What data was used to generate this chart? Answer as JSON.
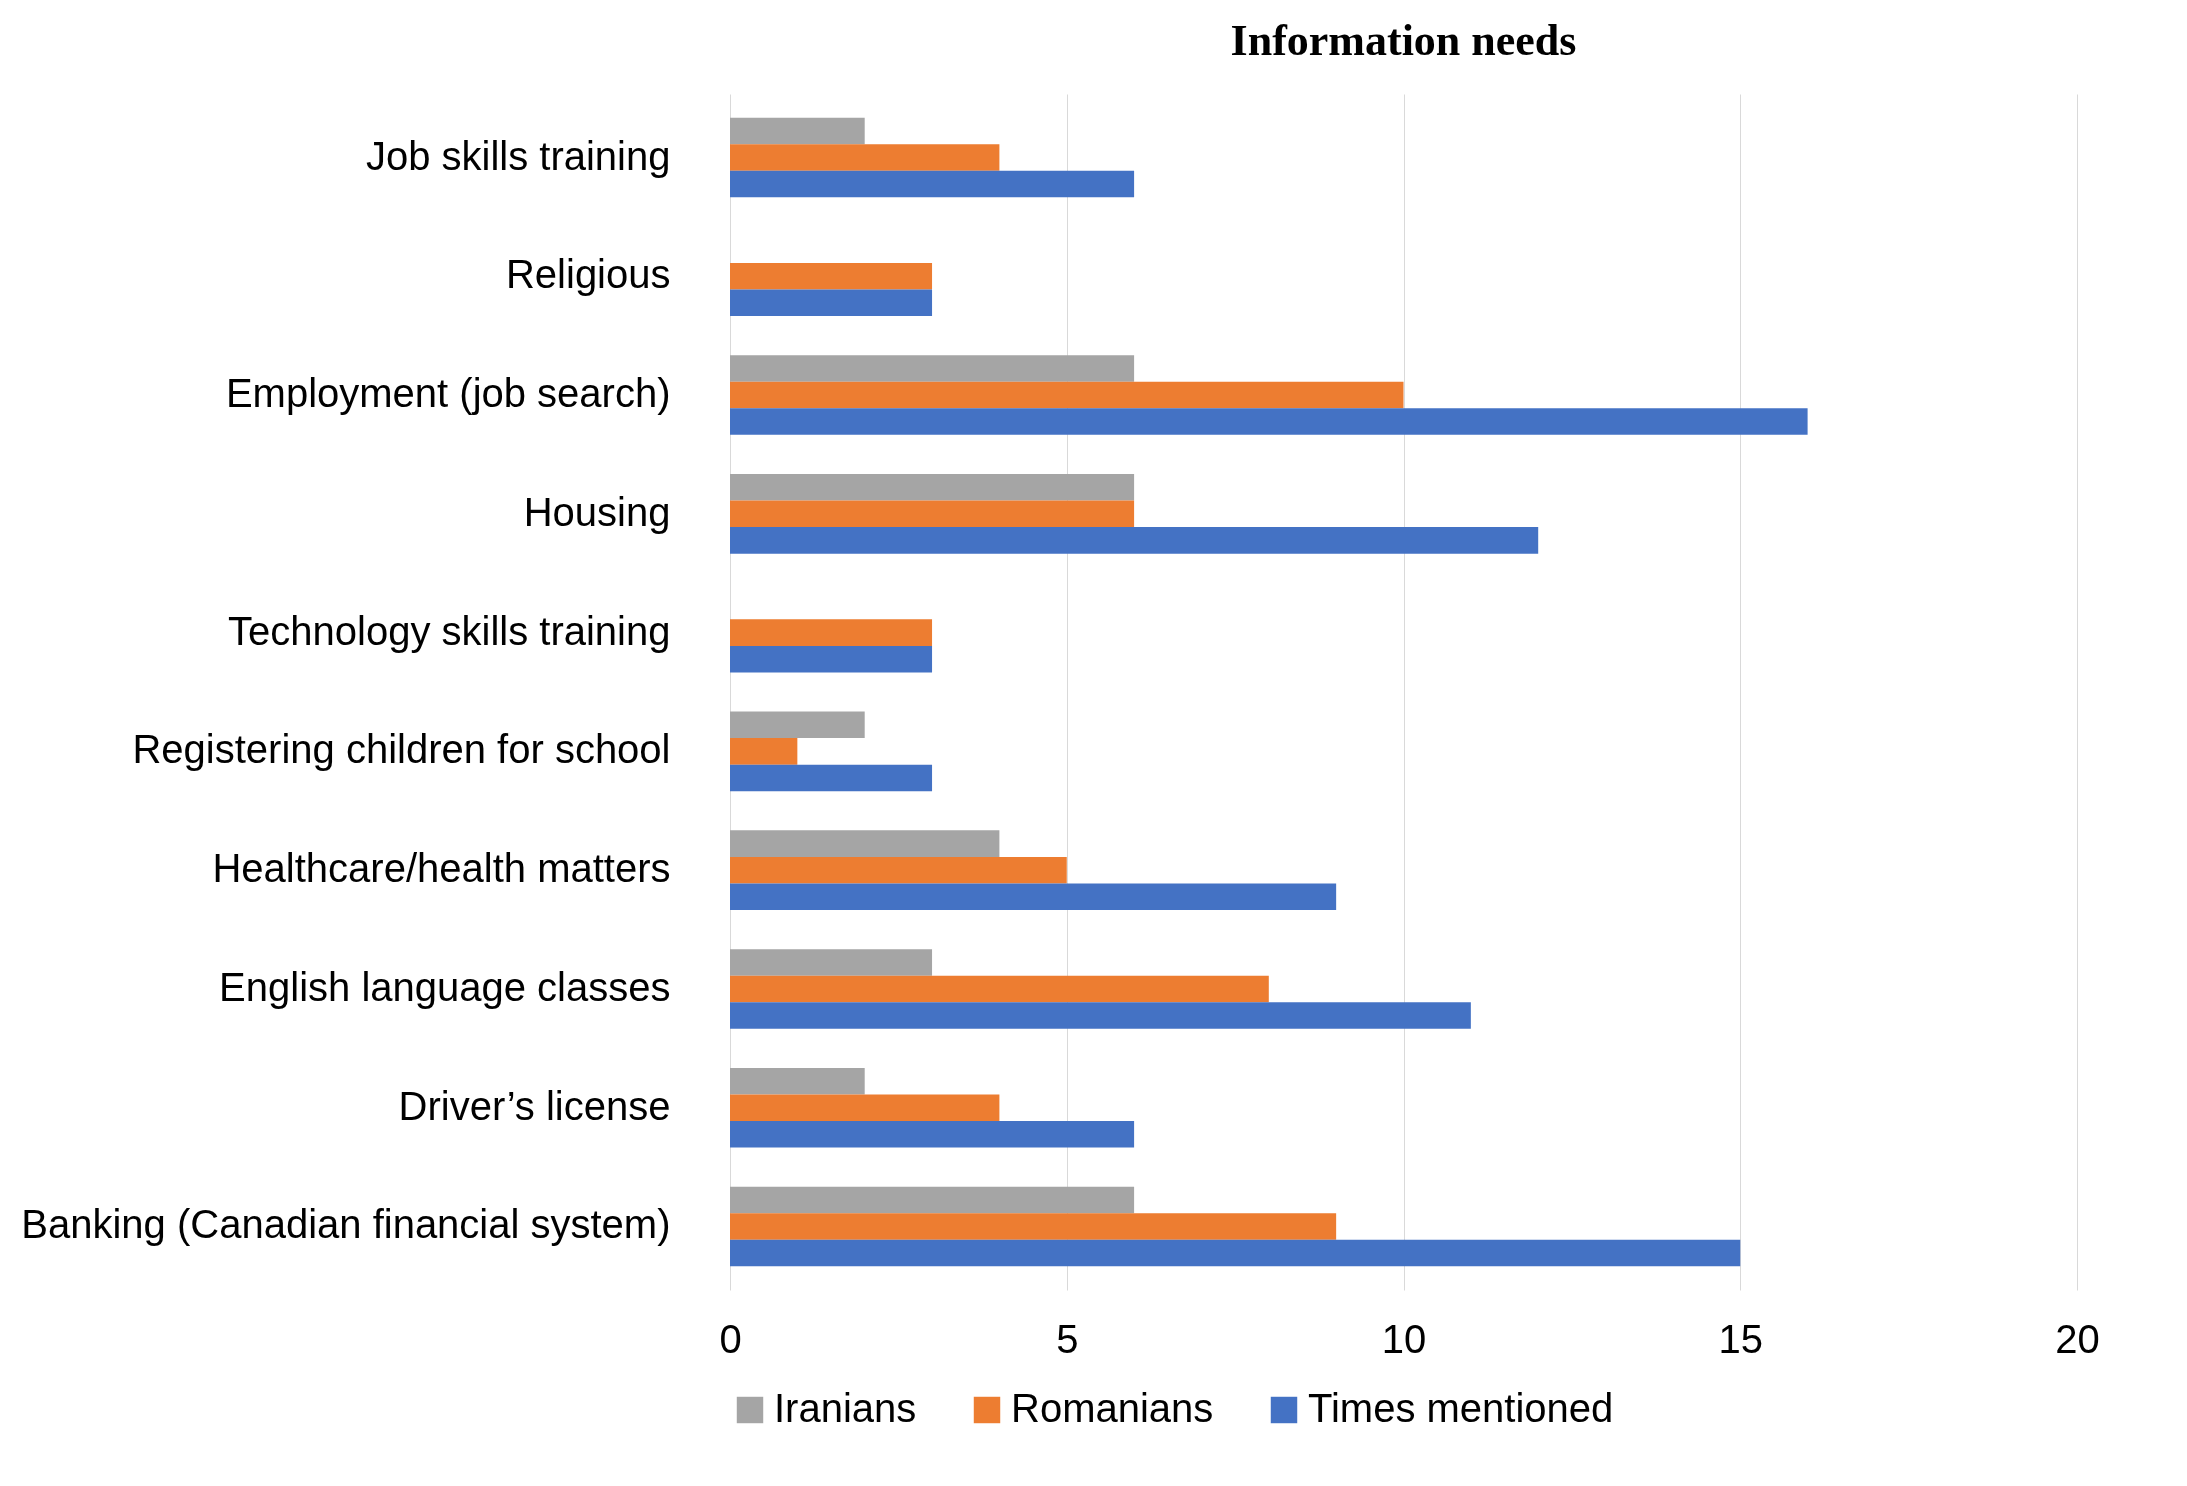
{
  "chart_data": {
    "type": "bar",
    "orientation": "horizontal",
    "title": "Information needs",
    "categories": [
      "Job skills training",
      "Religious",
      "Employment (job search)",
      "Housing",
      "Technology skills training",
      "Registering children for school",
      "Healthcare/health matters",
      "English language classes",
      "Driver’s license",
      "Banking (Canadian financial system)"
    ],
    "series": [
      {
        "name": "Iranians",
        "color": "#a5a5a5",
        "values": [
          2,
          0,
          6,
          6,
          0,
          2,
          4,
          3,
          2,
          6
        ]
      },
      {
        "name": "Romanians",
        "color": "#ed7d31",
        "values": [
          4,
          3,
          10,
          6,
          3,
          1,
          5,
          8,
          4,
          9
        ]
      },
      {
        "name": "Times mentioned",
        "color": "#4472c4",
        "values": [
          6,
          3,
          16,
          12,
          3,
          3,
          9,
          11,
          6,
          15
        ]
      }
    ],
    "xlim": [
      0,
      20
    ],
    "xticks": [
      0,
      5,
      10,
      15,
      20
    ],
    "grid": "x",
    "legend": "bottom"
  }
}
